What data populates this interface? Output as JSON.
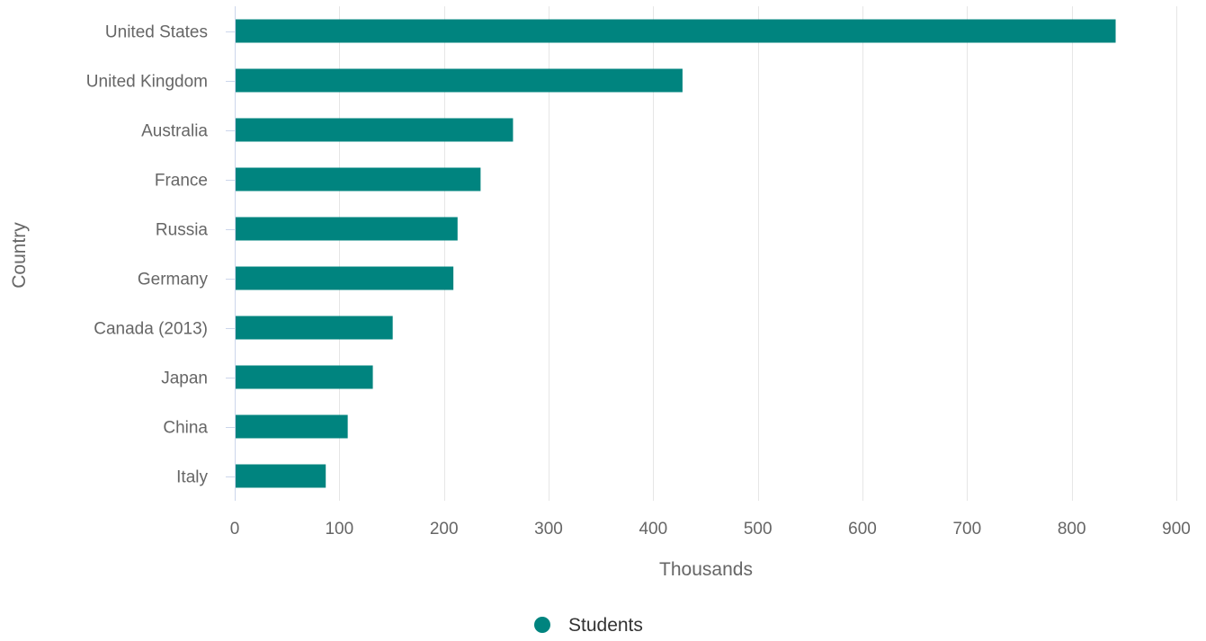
{
  "chart_data": {
    "type": "bar",
    "orientation": "horizontal",
    "title": "",
    "xlabel": "Thousands",
    "ylabel": "Country",
    "categories": [
      "United States",
      "United Kingdom",
      "Australia",
      "France",
      "Russia",
      "Germany",
      "Canada (2013)",
      "Japan",
      "China",
      "Italy"
    ],
    "series": [
      {
        "name": "Students",
        "values": [
          842,
          428,
          266,
          235,
          213,
          209,
          151,
          132,
          108,
          87
        ]
      }
    ],
    "xlim": [
      0,
      900
    ],
    "xticks": [
      0,
      100,
      200,
      300,
      400,
      500,
      600,
      700,
      800,
      900
    ],
    "grid": true,
    "legend": "bottom-center",
    "colors": {
      "bar": "#00847f",
      "grid": "#e6e6e6",
      "axis": "#ccd6eb",
      "text": "#666666",
      "legend_text": "#333333"
    }
  }
}
